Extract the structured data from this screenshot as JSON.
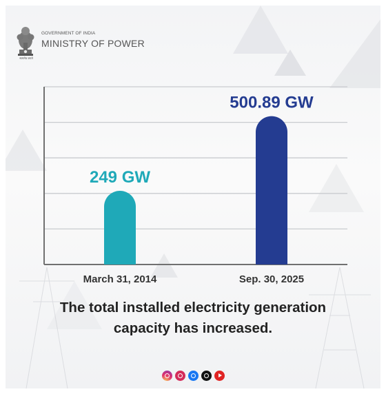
{
  "header": {
    "emblem_caption": "सत्यमेव जयते",
    "government_line": "GOVERNMENT OF INDIA",
    "ministry_line": "MINISTRY OF POWER"
  },
  "chart_data": {
    "type": "bar",
    "categories": [
      "March 31, 2014",
      "Sep. 30, 2025"
    ],
    "values": [
      249,
      500.89
    ],
    "data_labels": [
      "249 GW",
      "500.89 GW"
    ],
    "bar_colors": [
      "#1fa9b8",
      "#243c91"
    ],
    "title": "",
    "xlabel": "",
    "ylabel": "",
    "ylim": [
      0,
      600
    ],
    "grid": true
  },
  "caption": {
    "line1": "The total installed electricity generation",
    "line2": "capacity has increased."
  },
  "social_icons": [
    "instagram-icon",
    "koo-icon",
    "facebook-icon",
    "x-icon",
    "youtube-icon"
  ]
}
